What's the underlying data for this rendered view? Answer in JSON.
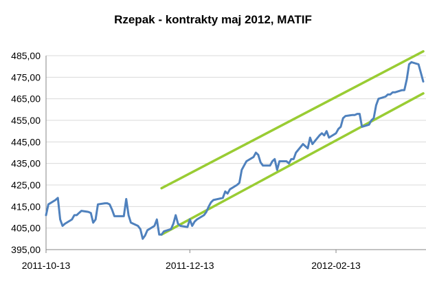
{
  "chart_data": {
    "type": "line",
    "title": "Rzepak - kontrakty maj 2012, MATIF",
    "xlabel": "",
    "ylabel": "",
    "ylim": [
      395,
      485
    ],
    "y_ticks": [
      "395,00",
      "405,00",
      "415,00",
      "425,00",
      "435,00",
      "445,00",
      "455,00",
      "465,00",
      "475,00",
      "485,00"
    ],
    "x_ticks": [
      "2011-10-13",
      "2011-12-13",
      "2012-02-13"
    ],
    "grid": "horizontal",
    "legend": "none",
    "colors": {
      "series": "#4f81bd",
      "channel": "#99cc33",
      "grid": "#d9d9d9",
      "axis": "#868686"
    },
    "series": [
      {
        "color": "#4f81bd",
        "x": [
          "2011-10-13",
          "2011-10-14",
          "2011-10-17",
          "2011-10-18",
          "2011-10-19",
          "2011-10-20",
          "2011-10-21",
          "2011-10-24",
          "2011-10-25",
          "2011-10-26",
          "2011-10-27",
          "2011-10-28",
          "2011-10-31",
          "2011-11-01",
          "2011-11-02",
          "2011-11-03",
          "2011-11-04",
          "2011-11-07",
          "2011-11-08",
          "2011-11-09",
          "2011-11-10",
          "2011-11-11",
          "2011-11-14",
          "2011-11-15",
          "2011-11-16",
          "2011-11-17",
          "2011-11-18",
          "2011-11-21",
          "2011-11-22",
          "2011-11-23",
          "2011-11-24",
          "2011-11-25",
          "2011-11-28",
          "2011-11-29",
          "2011-11-30",
          "2011-12-01",
          "2011-12-02",
          "2011-12-05",
          "2011-12-06",
          "2011-12-07",
          "2011-12-08",
          "2011-12-09",
          "2011-12-12",
          "2011-12-13",
          "2011-12-14",
          "2011-12-15",
          "2011-12-16",
          "2011-12-19",
          "2011-12-20",
          "2011-12-21",
          "2011-12-22",
          "2011-12-23",
          "2011-12-27",
          "2011-12-28",
          "2011-12-29",
          "2011-12-30",
          "2012-01-02",
          "2012-01-03",
          "2012-01-04",
          "2012-01-05",
          "2012-01-06",
          "2012-01-09",
          "2012-01-10",
          "2012-01-11",
          "2012-01-12",
          "2012-01-13",
          "2012-01-16",
          "2012-01-17",
          "2012-01-18",
          "2012-01-19",
          "2012-01-20",
          "2012-01-23",
          "2012-01-24",
          "2012-01-25",
          "2012-01-26",
          "2012-01-27",
          "2012-01-30",
          "2012-01-31",
          "2012-02-01",
          "2012-02-02",
          "2012-02-03",
          "2012-02-06",
          "2012-02-07",
          "2012-02-08",
          "2012-02-09",
          "2012-02-10",
          "2012-02-13",
          "2012-02-14",
          "2012-02-15",
          "2012-02-16",
          "2012-02-17",
          "2012-02-20",
          "2012-02-21",
          "2012-02-22",
          "2012-02-23",
          "2012-02-24",
          "2012-02-27",
          "2012-02-28",
          "2012-02-29",
          "2012-03-01",
          "2012-03-02",
          "2012-03-05",
          "2012-03-06",
          "2012-03-07",
          "2012-03-08",
          "2012-03-09",
          "2012-03-12",
          "2012-03-13",
          "2012-03-14",
          "2012-03-15",
          "2012-03-16",
          "2012-03-19",
          "2012-03-20",
          "2012-03-21"
        ],
        "values": [
          411,
          416,
          418,
          419,
          409,
          406,
          407,
          409,
          411,
          411,
          412,
          413,
          412.5,
          412,
          407.5,
          409,
          416,
          416.5,
          416.5,
          416,
          413.5,
          410.5,
          410.5,
          410.5,
          418.5,
          411,
          407.5,
          406,
          404.5,
          400,
          401.5,
          404,
          406,
          409,
          402,
          402,
          403.5,
          404.5,
          407,
          411,
          407,
          406,
          405.5,
          409,
          406,
          408,
          409,
          411,
          412.5,
          415,
          417,
          418,
          419,
          422,
          421,
          423,
          425,
          426,
          432,
          434,
          436,
          438,
          440,
          439,
          435.5,
          434,
          434,
          436,
          437,
          432,
          436,
          436,
          435,
          437,
          437,
          440,
          444,
          443,
          442,
          447,
          444,
          448,
          449,
          448,
          450,
          447,
          449,
          451,
          452,
          456,
          457,
          457.5,
          457.5,
          458,
          458,
          452,
          453,
          455,
          456,
          462,
          465,
          466,
          467,
          467,
          468,
          468,
          469,
          469,
          474,
          481,
          482,
          481,
          477,
          473
        ]
      }
    ],
    "channel_lines": [
      {
        "x": [
          "2011-12-01",
          "2012-03-21"
        ],
        "values": [
          423.5,
          487
        ]
      },
      {
        "x": [
          "2011-12-01",
          "2012-03-21"
        ],
        "values": [
          402,
          467.5
        ]
      }
    ]
  }
}
